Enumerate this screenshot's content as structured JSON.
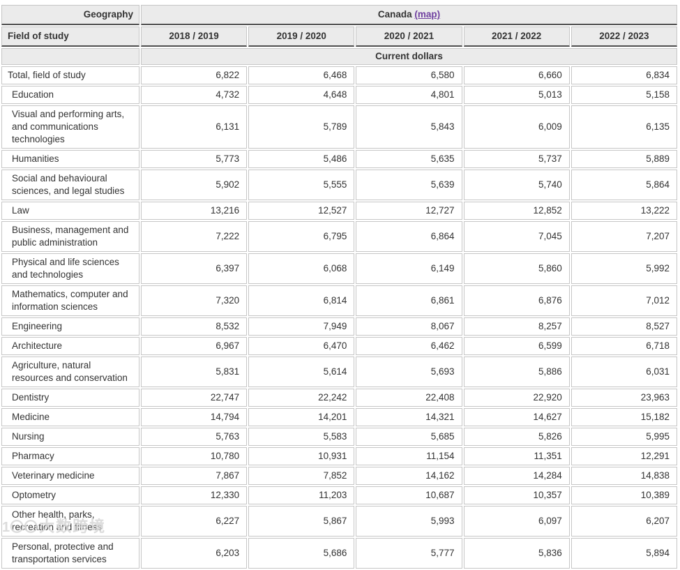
{
  "table": {
    "geography_label": "Geography",
    "geography_value": "Canada",
    "map_link_label": "(map)",
    "row_header_label": "Field of study",
    "year_columns": [
      "2018 / 2019",
      "2019 / 2020",
      "2020 / 2021",
      "2021 / 2022",
      "2022 / 2023"
    ],
    "unit_label": "Current dollars",
    "rows": [
      {
        "label": "Total, field of study",
        "indent": false,
        "values": [
          "6,822",
          "6,468",
          "6,580",
          "6,660",
          "6,834"
        ]
      },
      {
        "label": "Education",
        "indent": true,
        "values": [
          "4,732",
          "4,648",
          "4,801",
          "5,013",
          "5,158"
        ]
      },
      {
        "label": "Visual and performing arts, and communications technologies",
        "indent": true,
        "values": [
          "6,131",
          "5,789",
          "5,843",
          "6,009",
          "6,135"
        ]
      },
      {
        "label": "Humanities",
        "indent": true,
        "values": [
          "5,773",
          "5,486",
          "5,635",
          "5,737",
          "5,889"
        ]
      },
      {
        "label": "Social and behavioural sciences, and legal studies",
        "indent": true,
        "values": [
          "5,902",
          "5,555",
          "5,639",
          "5,740",
          "5,864"
        ]
      },
      {
        "label": "Law",
        "indent": true,
        "values": [
          "13,216",
          "12,527",
          "12,727",
          "12,852",
          "13,222"
        ]
      },
      {
        "label": "Business, management and public administration",
        "indent": true,
        "values": [
          "7,222",
          "6,795",
          "6,864",
          "7,045",
          "7,207"
        ]
      },
      {
        "label": "Physical and life sciences and technologies",
        "indent": true,
        "values": [
          "6,397",
          "6,068",
          "6,149",
          "5,860",
          "5,992"
        ]
      },
      {
        "label": "Mathematics, computer and information sciences",
        "indent": true,
        "values": [
          "7,320",
          "6,814",
          "6,861",
          "6,876",
          "7,012"
        ]
      },
      {
        "label": "Engineering",
        "indent": true,
        "values": [
          "8,532",
          "7,949",
          "8,067",
          "8,257",
          "8,527"
        ]
      },
      {
        "label": "Architecture",
        "indent": true,
        "values": [
          "6,967",
          "6,470",
          "6,462",
          "6,599",
          "6,718"
        ]
      },
      {
        "label": "Agriculture, natural resources and conservation",
        "indent": true,
        "values": [
          "5,831",
          "5,614",
          "5,693",
          "5,886",
          "6,031"
        ]
      },
      {
        "label": "Dentistry",
        "indent": true,
        "values": [
          "22,747",
          "22,242",
          "22,408",
          "22,920",
          "23,963"
        ]
      },
      {
        "label": "Medicine",
        "indent": true,
        "values": [
          "14,794",
          "14,201",
          "14,321",
          "14,627",
          "15,182"
        ]
      },
      {
        "label": "Nursing",
        "indent": true,
        "values": [
          "5,763",
          "5,583",
          "5,685",
          "5,826",
          "5,995"
        ]
      },
      {
        "label": "Pharmacy",
        "indent": true,
        "values": [
          "10,780",
          "10,931",
          "11,154",
          "11,351",
          "12,291"
        ]
      },
      {
        "label": "Veterinary medicine",
        "indent": true,
        "values": [
          "7,867",
          "7,852",
          "14,162",
          "14,284",
          "14,838"
        ]
      },
      {
        "label": "Optometry",
        "indent": true,
        "values": [
          "12,330",
          "11,203",
          "10,687",
          "10,357",
          "10,389"
        ]
      },
      {
        "label": "Other health, parks, recreation and fitness",
        "indent": true,
        "values": [
          "6,227",
          "5,867",
          "5,993",
          "6,097",
          "6,207"
        ]
      },
      {
        "label": "Personal, protective and transportation services",
        "indent": true,
        "values": [
          "6,203",
          "5,686",
          "5,777",
          "5,836",
          "5,894"
        ]
      }
    ]
  },
  "watermark": {
    "logo_text": "1〇〇",
    "text": "大数跨境"
  },
  "colors": {
    "header_background": "#ebebeb",
    "cell_border": "#c6c6c6",
    "header_dark_border": "#4e4e4e",
    "text": "#333333",
    "link_purple": "#7040a0",
    "page_background": "#ffffff"
  },
  "chart_data": {
    "type": "table",
    "title": "Canada — Current dollars",
    "categories": [
      "2018 / 2019",
      "2019 / 2020",
      "2020 / 2021",
      "2021 / 2022",
      "2022 / 2023"
    ],
    "series": [
      {
        "name": "Total, field of study",
        "values": [
          6822,
          6468,
          6580,
          6660,
          6834
        ]
      },
      {
        "name": "Education",
        "values": [
          4732,
          4648,
          4801,
          5013,
          5158
        ]
      },
      {
        "name": "Visual and performing arts, and communications technologies",
        "values": [
          6131,
          5789,
          5843,
          6009,
          6135
        ]
      },
      {
        "name": "Humanities",
        "values": [
          5773,
          5486,
          5635,
          5737,
          5889
        ]
      },
      {
        "name": "Social and behavioural sciences, and legal studies",
        "values": [
          5902,
          5555,
          5639,
          5740,
          5864
        ]
      },
      {
        "name": "Law",
        "values": [
          13216,
          12527,
          12727,
          12852,
          13222
        ]
      },
      {
        "name": "Business, management and public administration",
        "values": [
          7222,
          6795,
          6864,
          7045,
          7207
        ]
      },
      {
        "name": "Physical and life sciences and technologies",
        "values": [
          6397,
          6068,
          6149,
          5860,
          5992
        ]
      },
      {
        "name": "Mathematics, computer and information sciences",
        "values": [
          7320,
          6814,
          6861,
          6876,
          7012
        ]
      },
      {
        "name": "Engineering",
        "values": [
          8532,
          7949,
          8067,
          8257,
          8527
        ]
      },
      {
        "name": "Architecture",
        "values": [
          6967,
          6470,
          6462,
          6599,
          6718
        ]
      },
      {
        "name": "Agriculture, natural resources and conservation",
        "values": [
          5831,
          5614,
          5693,
          5886,
          6031
        ]
      },
      {
        "name": "Dentistry",
        "values": [
          22747,
          22242,
          22408,
          22920,
          23963
        ]
      },
      {
        "name": "Medicine",
        "values": [
          14794,
          14201,
          14321,
          14627,
          15182
        ]
      },
      {
        "name": "Nursing",
        "values": [
          5763,
          5583,
          5685,
          5826,
          5995
        ]
      },
      {
        "name": "Pharmacy",
        "values": [
          10780,
          10931,
          11154,
          11351,
          12291
        ]
      },
      {
        "name": "Veterinary medicine",
        "values": [
          7867,
          7852,
          14162,
          14284,
          14838
        ]
      },
      {
        "name": "Optometry",
        "values": [
          12330,
          11203,
          10687,
          10357,
          10389
        ]
      },
      {
        "name": "Other health, parks, recreation and fitness",
        "values": [
          6227,
          5867,
          5993,
          6097,
          6207
        ]
      },
      {
        "name": "Personal, protective and transportation services",
        "values": [
          6203,
          5686,
          5777,
          5836,
          5894
        ]
      }
    ]
  }
}
